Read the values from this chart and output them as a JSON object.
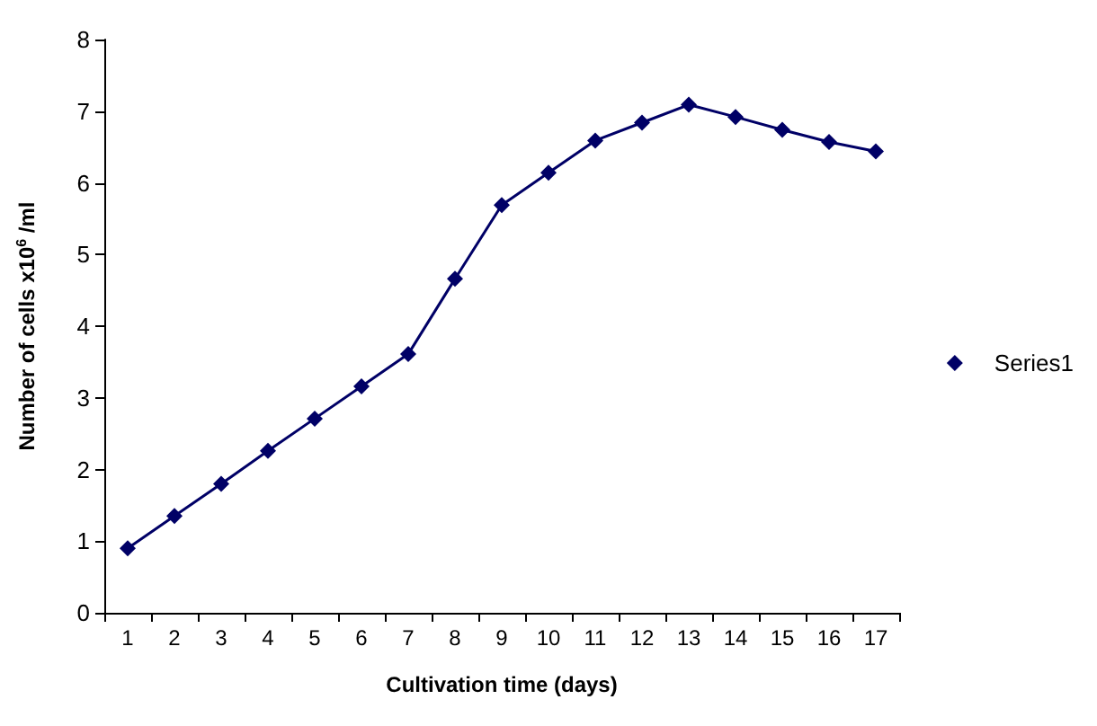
{
  "chart_data": {
    "type": "line",
    "xlabel": "Cultivation time (days)",
    "ylabel": "Number of cells x10$^{6}$ /ml",
    "categories": [
      "1",
      "2",
      "3",
      "4",
      "5",
      "6",
      "7",
      "8",
      "9",
      "10",
      "11",
      "12",
      "13",
      "14",
      "15",
      "16",
      "17"
    ],
    "series": [
      {
        "name": "Series1",
        "color": "#000066",
        "values": [
          0.9,
          1.35,
          1.8,
          2.26,
          2.71,
          3.16,
          3.61,
          4.66,
          5.69,
          6.14,
          6.59,
          6.84,
          7.09,
          6.92,
          6.74,
          6.57,
          6.44
        ]
      }
    ],
    "ylim": [
      0,
      8
    ],
    "yticks": [
      0,
      1,
      2,
      3,
      4,
      5,
      6,
      7,
      8
    ],
    "grid": false,
    "legend": "right",
    "marker": "diamond",
    "line_style": "solid"
  }
}
